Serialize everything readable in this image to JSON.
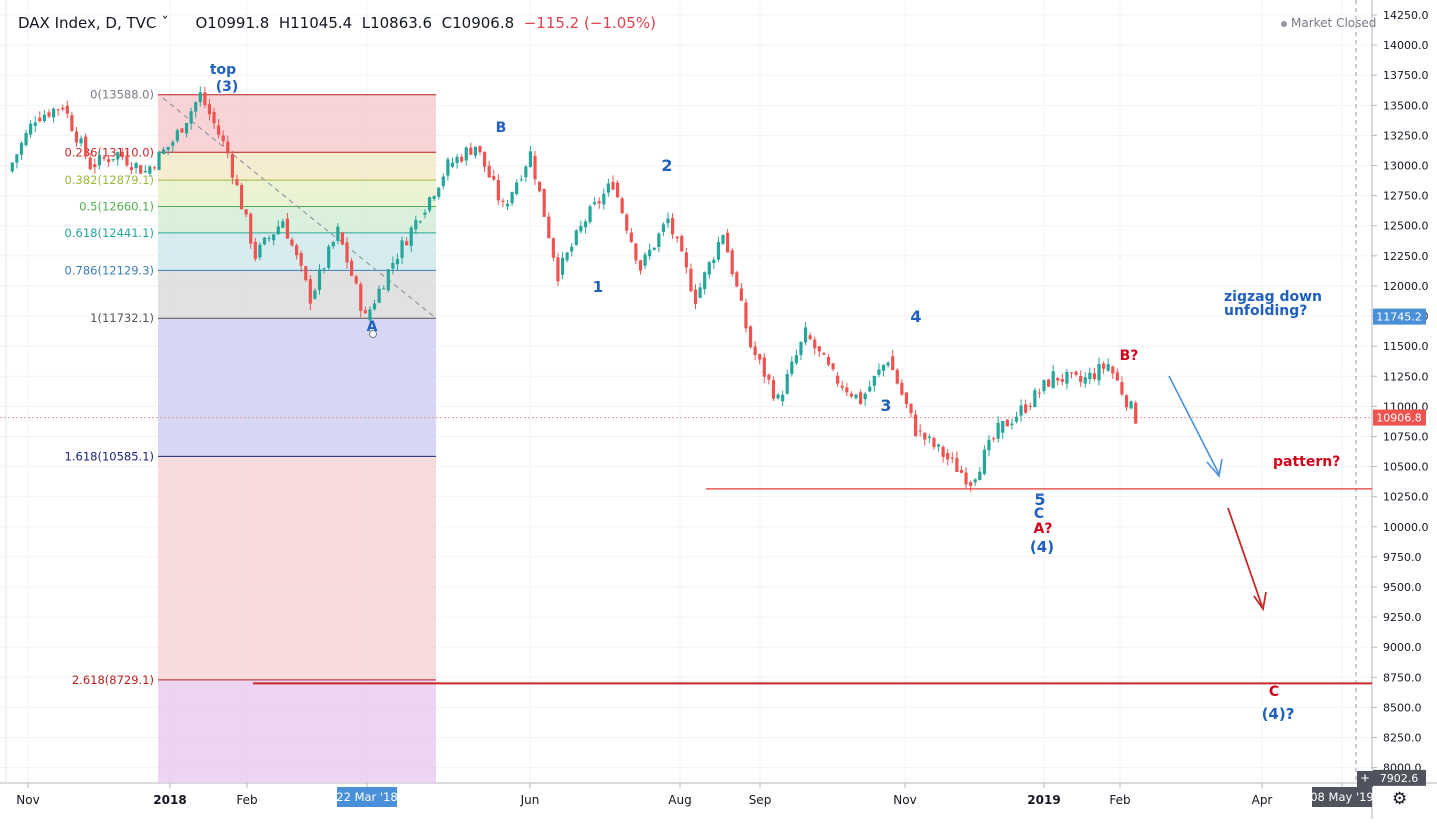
{
  "header": {
    "symbol": "DAX Index, D, TVC",
    "chevron": "chevron-down-icon",
    "open": "O10991.8",
    "high": "H11045.4",
    "low": "L10863.6",
    "close": "C10906.8",
    "change": "−115.2 (−1.05%)"
  },
  "status": {
    "market": "Market Closed"
  },
  "colors": {
    "up": "#26a69a",
    "down": "#ef5350",
    "blue_label": "#1f5fbf",
    "red_label": "#d0021b"
  },
  "chart_data": {
    "type": "candlestick",
    "x_ticks": [
      "Nov",
      "2018",
      "Feb",
      "22 Mar '18",
      "Jun",
      "Aug",
      "Sep",
      "Nov",
      "2019",
      "Feb",
      "Apr",
      "08 May '19"
    ],
    "y_ticks": [
      14250,
      14000,
      13750,
      13500,
      13250,
      13000,
      12750,
      12500,
      12250,
      12000,
      11750,
      11500,
      11250,
      11000,
      10750,
      10500,
      10250,
      10000,
      9750,
      9500,
      9250,
      9000,
      8750,
      8500,
      8250,
      8000
    ],
    "y_range": [
      7880,
      14270
    ],
    "price_badges": {
      "alert": "11745.2",
      "last": "10906.8",
      "low": "7902.6"
    },
    "fib_levels": [
      {
        "label": "0(13588.0)",
        "value": 13588.0
      },
      {
        "label": "0.236(13110.0)",
        "value": 13110.0
      },
      {
        "label": "0.382(12879.1)",
        "value": 12879.1
      },
      {
        "label": "0.5(12660.1)",
        "value": 12660.1
      },
      {
        "label": "0.618(12441.1)",
        "value": 12441.1
      },
      {
        "label": "0.786(12129.3)",
        "value": 12129.3
      },
      {
        "label": "1(11732.1)",
        "value": 11732.1
      },
      {
        "label": "1.618(10585.1)",
        "value": 10585.1
      },
      {
        "label": "2.618(8729.1)",
        "value": 8729.1
      }
    ],
    "price_path": [
      [
        "Oct 2017",
        12950
      ],
      [
        "Oct 2017",
        13400
      ],
      [
        "Nov 2017",
        13500
      ],
      [
        "Nov 2017",
        13000
      ],
      [
        "Dec 2017",
        13100
      ],
      [
        "Dec 2017",
        12950
      ],
      [
        "Jan 2018",
        13200
      ],
      [
        "Jan 2018",
        13588
      ],
      [
        "Feb 2018",
        13100
      ],
      [
        "Feb 2018",
        12250
      ],
      [
        "Mar 2018",
        12550
      ],
      [
        "Mar 2018",
        11900
      ],
      [
        "Mar 2018",
        12450
      ],
      [
        "Mar 2018",
        11732
      ],
      [
        "Apr 2018",
        12200
      ],
      [
        "Apr 2018",
        12600
      ],
      [
        "May 2018",
        13000
      ],
      [
        "May 2018",
        13170
      ],
      [
        "Jun 2018",
        12650
      ],
      [
        "Jun 2018",
        13100
      ],
      [
        "Jun 2018",
        12100
      ],
      [
        "Jul 2018",
        12550
      ],
      [
        "Jul 2018",
        12860
      ],
      [
        "Aug 2018",
        12150
      ],
      [
        "Aug 2018",
        12550
      ],
      [
        "Sep 2018",
        11900
      ],
      [
        "Sep 2018",
        12450
      ],
      [
        "Oct 2018",
        11500
      ],
      [
        "Oct 2018",
        11050
      ],
      [
        "Oct 2018",
        11600
      ],
      [
        "Nov 2018",
        11250
      ],
      [
        "Nov 2018",
        11050
      ],
      [
        "Dec 2018",
        11400
      ],
      [
        "Dec 2018",
        10800
      ],
      [
        "Dec 2018",
        10600
      ],
      [
        "Jan 2019",
        10380
      ],
      [
        "Jan 2019",
        10800
      ],
      [
        "Jan 2019",
        11000
      ],
      [
        "Jan 2019",
        11250
      ],
      [
        "Feb 2019",
        11200
      ],
      [
        "Feb 2019",
        11350
      ],
      [
        "Feb 2019",
        10906.8
      ]
    ],
    "horizontal_lines": [
      {
        "color": "#e53935",
        "value": 10315
      },
      {
        "color": "#c62828",
        "value": 8700
      },
      {
        "color": "#ef9a9a",
        "value": 10906.8
      }
    ],
    "annotations": [
      {
        "text": "top",
        "color": "#1f5fbf"
      },
      {
        "text": "(3)",
        "color": "#1f5fbf"
      },
      {
        "text": "B",
        "color": "#1f5fbf"
      },
      {
        "text": "A",
        "color": "#1f5fbf"
      },
      {
        "text": "1",
        "color": "#1f5fbf"
      },
      {
        "text": "2",
        "color": "#1f5fbf"
      },
      {
        "text": "3",
        "color": "#1f5fbf"
      },
      {
        "text": "4",
        "color": "#1f5fbf"
      },
      {
        "text": "5",
        "color": "#1f5fbf"
      },
      {
        "text": "C",
        "color": "#1f5fbf"
      },
      {
        "text": "A?",
        "color": "#d0021b"
      },
      {
        "text": "(4)",
        "color": "#1f5fbf"
      },
      {
        "text": "B?",
        "color": "#d0021b"
      },
      {
        "text": "zigzag down",
        "color": "#1f5fbf"
      },
      {
        "text": "unfolding?",
        "color": "#1f5fbf"
      },
      {
        "text": "pattern?",
        "color": "#d0021b"
      },
      {
        "text": "C",
        "color": "#d0021b"
      },
      {
        "text": "(4)?",
        "color": "#1f5fbf"
      }
    ]
  }
}
